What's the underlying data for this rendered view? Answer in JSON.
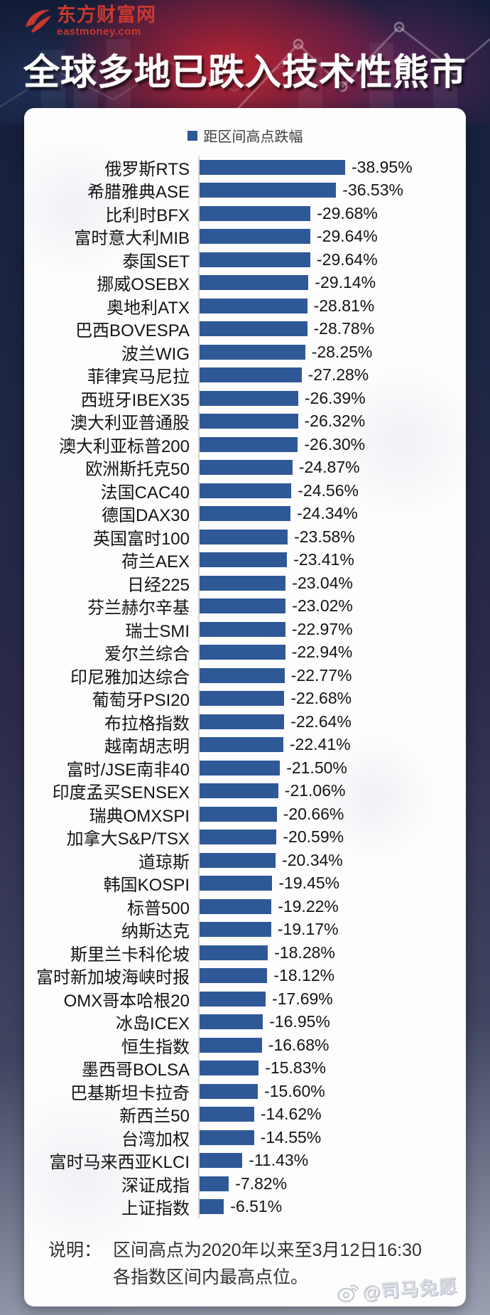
{
  "header": {
    "logo_cn": "东方财富网",
    "logo_en": "eastmoney.com",
    "title": "全球多地已跌入技术性熊市"
  },
  "legend": {
    "label": "距区间高点跌幅"
  },
  "colors": {
    "bar": "#2F5897",
    "legend_swatch": "#2E5895",
    "logo_red": "#c9382e",
    "title_text": "#ffffff",
    "card_bg": "#fdfdfe"
  },
  "chart_data": {
    "type": "bar",
    "orientation": "horizontal",
    "legend": "距区间高点跌幅",
    "unit": "%",
    "value_format": "-0.00%",
    "axis_baseline": 0,
    "xlim": [
      0,
      -40
    ],
    "grid": false,
    "categories": [
      "俄罗斯RTS",
      "希腊雅典ASE",
      "比利时BFX",
      "富时意大利MIB",
      "泰国SET",
      "挪威OSEBX",
      "奥地利ATX",
      "巴西BOVESPA",
      "波兰WIG",
      "菲律宾马尼拉",
      "西班牙IBEX35",
      "澳大利亚普通股",
      "澳大利亚标普200",
      "欧洲斯托克50",
      "法国CAC40",
      "德国DAX30",
      "英国富时100",
      "荷兰AEX",
      "日经225",
      "芬兰赫尔辛基",
      "瑞士SMI",
      "爱尔兰综合",
      "印尼雅加达综合",
      "葡萄牙PSI20",
      "布拉格指数",
      "越南胡志明",
      "富时/JSE南非40",
      "印度孟买SENSEX",
      "瑞典OMXSPI",
      "加拿大S&P/TSX",
      "道琼斯",
      "韩国KOSPI",
      "标普500",
      "纳斯达克",
      "斯里兰卡科伦坡",
      "富时新加坡海峡时报",
      "OMX哥本哈根20",
      "冰岛ICEX",
      "恒生指数",
      "墨西哥BOLSA",
      "巴基斯坦卡拉奇",
      "新西兰50",
      "台湾加权",
      "富时马来西亚KLCI",
      "深证成指",
      "上证指数"
    ],
    "values": [
      -38.95,
      -36.53,
      -29.68,
      -29.64,
      -29.64,
      -29.14,
      -28.81,
      -28.78,
      -28.25,
      -27.28,
      -26.39,
      -26.32,
      -26.3,
      -24.87,
      -24.56,
      -24.34,
      -23.58,
      -23.41,
      -23.04,
      -23.02,
      -22.97,
      -22.94,
      -22.77,
      -22.68,
      -22.64,
      -22.41,
      -21.5,
      -21.06,
      -20.66,
      -20.59,
      -20.34,
      -19.45,
      -19.22,
      -19.17,
      -18.28,
      -18.12,
      -17.69,
      -16.95,
      -16.68,
      -15.83,
      -15.6,
      -14.62,
      -14.55,
      -11.43,
      -7.82,
      -6.51
    ]
  },
  "note": {
    "prefix": "说明：",
    "line1": "区间高点为2020年以来至3月12日16:30",
    "line2": "各指数区间内最高点位。"
  },
  "watermark": {
    "text": "@司马兔愿"
  }
}
